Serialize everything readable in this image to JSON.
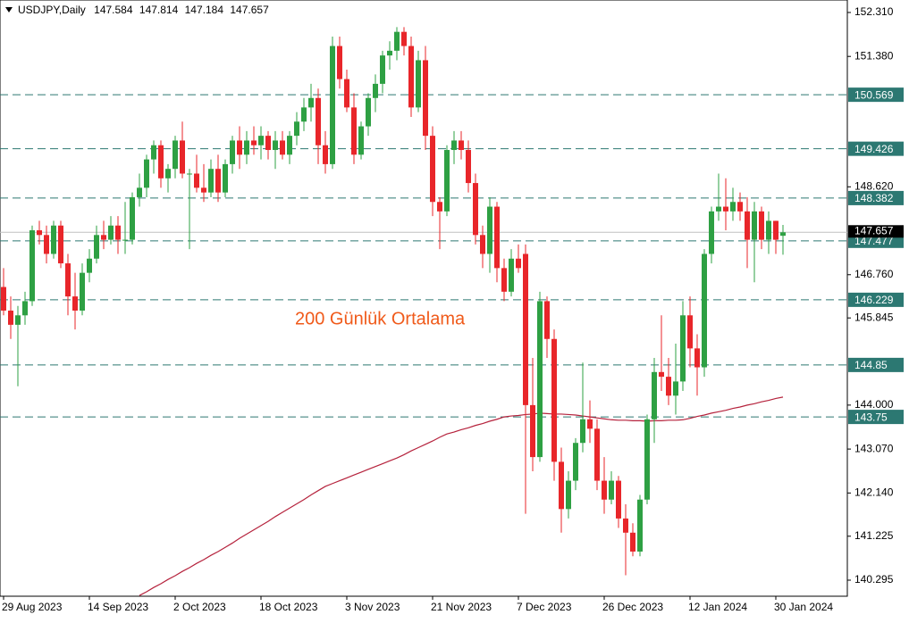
{
  "chart_data": {
    "type": "candlestick",
    "symbol": "USDJPY,Daily",
    "annotation": "200 Günlük Ortalama",
    "up_color": "#2ea043",
    "down_color": "#e8262a",
    "categories": [
      "29 Aug 2023",
      null,
      null,
      null,
      null,
      null,
      null,
      null,
      null,
      null,
      null,
      null,
      "14 Sep 2023",
      null,
      null,
      null,
      null,
      null,
      null,
      null,
      null,
      null,
      null,
      null,
      "2 Oct 2023",
      null,
      null,
      null,
      null,
      null,
      null,
      null,
      null,
      null,
      null,
      null,
      "18 Oct 2023",
      null,
      null,
      null,
      null,
      null,
      null,
      null,
      null,
      null,
      null,
      null,
      "3 Nov 2023",
      null,
      null,
      null,
      null,
      null,
      null,
      null,
      null,
      null,
      null,
      null,
      "21 Nov 2023",
      null,
      null,
      null,
      null,
      null,
      null,
      null,
      null,
      null,
      null,
      null,
      "7 Dec 2023",
      null,
      null,
      null,
      null,
      null,
      null,
      null,
      null,
      null,
      null,
      null,
      "26 Dec 2023",
      null,
      null,
      null,
      null,
      null,
      null,
      null,
      null,
      null,
      null,
      null,
      "12 Jan 2024",
      null,
      null,
      null,
      null,
      null,
      null,
      null,
      null,
      null,
      null,
      null,
      "30 Jan 2024",
      null
    ],
    "open": [
      146.5,
      146.0,
      145.7,
      145.9,
      146.2,
      147.7,
      147.6,
      147.2,
      147.8,
      147.0,
      146.3,
      146.0,
      146.8,
      147.1,
      147.6,
      147.5,
      147.8,
      147.5,
      147.5,
      148.4,
      148.6,
      149.2,
      149.5,
      148.8,
      149.0,
      149.6,
      148.9,
      148.9,
      148.6,
      148.5,
      149.0,
      148.5,
      149.1,
      149.6,
      149.3,
      149.6,
      149.5,
      149.7,
      149.4,
      149.6,
      149.3,
      149.7,
      150.0,
      150.3,
      150.5,
      149.5,
      149.1,
      151.6,
      150.9,
      150.3,
      149.3,
      149.9,
      150.5,
      150.8,
      151.4,
      151.5,
      151.9,
      151.6,
      150.3,
      151.3,
      149.7,
      148.3,
      148.1,
      149.4,
      149.6,
      149.4,
      148.7,
      147.6,
      147.2,
      148.2,
      146.9,
      146.4,
      147.1,
      147.2,
      144.0,
      142.9,
      146.2,
      145.4,
      142.8,
      141.8,
      142.4,
      143.2,
      143.7,
      143.5,
      142.4,
      142.0,
      142.4,
      141.6,
      141.3,
      140.9,
      142.0,
      143.7,
      144.7,
      144.6,
      144.2,
      144.5,
      145.9,
      145.2,
      144.8,
      147.2,
      148.1,
      148.2,
      148.1,
      148.3,
      148.1,
      147.5,
      148.1,
      147.5,
      147.9,
      147.584
    ],
    "high": [
      146.9,
      146.3,
      146.1,
      146.4,
      147.8,
      147.9,
      147.8,
      147.9,
      147.9,
      147.2,
      146.8,
      147.0,
      147.3,
      147.8,
      147.9,
      148.0,
      148.0,
      148.3,
      148.5,
      148.9,
      149.3,
      149.6,
      149.6,
      149.1,
      149.7,
      150.0,
      149.0,
      149.3,
      149.1,
      149.2,
      149.3,
      149.2,
      149.7,
      149.9,
      149.8,
      149.9,
      149.9,
      149.8,
      149.8,
      149.8,
      149.8,
      150.2,
      150.5,
      150.8,
      150.7,
      149.8,
      151.8,
      151.8,
      151.1,
      150.6,
      150.0,
      150.6,
      151.0,
      151.5,
      151.7,
      152.0,
      152.0,
      151.8,
      151.5,
      151.6,
      149.9,
      148.4,
      149.5,
      149.8,
      149.8,
      149.6,
      148.9,
      147.8,
      148.4,
      148.3,
      147.1,
      147.3,
      147.4,
      147.4,
      145.0,
      146.4,
      146.3,
      145.6,
      143.1,
      142.6,
      143.3,
      144.9,
      144.1,
      143.7,
      142.9,
      142.6,
      142.5,
      141.9,
      141.5,
      142.1,
      143.8,
      145.0,
      145.9,
      145.0,
      145.3,
      146.2,
      146.3,
      145.5,
      147.3,
      148.2,
      148.9,
      148.8,
      148.6,
      148.5,
      148.4,
      148.3,
      148.2,
      148.1,
      147.9,
      147.814
    ],
    "low": [
      145.9,
      145.4,
      144.4,
      145.7,
      146.1,
      147.4,
      147.0,
      147.1,
      146.9,
      145.9,
      145.6,
      145.9,
      146.6,
      147.0,
      147.3,
      147.4,
      147.2,
      147.2,
      147.4,
      148.2,
      148.4,
      148.9,
      148.6,
      148.5,
      148.8,
      148.8,
      147.3,
      148.5,
      148.3,
      148.4,
      148.3,
      148.4,
      148.9,
      149.0,
      149.1,
      149.3,
      149.2,
      149.2,
      149.0,
      149.2,
      149.1,
      149.5,
      149.8,
      150.0,
      149.1,
      148.9,
      149.0,
      150.7,
      150.2,
      149.1,
      149.2,
      149.7,
      150.2,
      150.6,
      151.1,
      151.3,
      151.4,
      150.1,
      150.2,
      149.4,
      148.0,
      147.3,
      148.0,
      149.1,
      149.2,
      148.5,
      147.4,
      146.9,
      146.8,
      146.6,
      146.2,
      146.3,
      146.8,
      141.7,
      142.6,
      142.8,
      145.0,
      142.4,
      141.3,
      141.6,
      142.2,
      143.0,
      143.2,
      142.2,
      141.7,
      141.9,
      141.4,
      140.4,
      140.8,
      140.8,
      141.9,
      143.2,
      144.3,
      144.0,
      143.8,
      144.3,
      144.8,
      144.2,
      144.6,
      147.0,
      147.9,
      147.7,
      147.9,
      147.9,
      146.9,
      146.6,
      147.3,
      147.2,
      147.2,
      147.184
    ],
    "close": [
      146.0,
      145.7,
      145.9,
      146.2,
      147.7,
      147.6,
      147.2,
      147.8,
      147.0,
      146.3,
      146.0,
      146.8,
      147.1,
      147.6,
      147.5,
      147.8,
      147.5,
      147.5,
      148.4,
      148.6,
      149.2,
      149.5,
      148.8,
      149.0,
      149.6,
      148.9,
      148.9,
      148.6,
      148.5,
      149.0,
      148.5,
      149.1,
      149.6,
      149.3,
      149.6,
      149.5,
      149.7,
      149.4,
      149.6,
      149.3,
      149.7,
      150.0,
      150.3,
      150.5,
      149.5,
      149.1,
      151.6,
      150.9,
      150.3,
      149.3,
      149.9,
      150.5,
      150.8,
      151.4,
      151.5,
      151.9,
      151.6,
      150.3,
      151.3,
      149.7,
      148.3,
      148.1,
      149.4,
      149.6,
      149.4,
      148.7,
      147.6,
      147.2,
      148.2,
      146.9,
      146.4,
      147.1,
      146.9,
      144.0,
      142.9,
      146.2,
      145.4,
      142.8,
      141.8,
      142.4,
      143.2,
      143.7,
      143.5,
      142.4,
      142.0,
      142.4,
      141.6,
      141.3,
      140.9,
      142.0,
      143.7,
      144.7,
      144.6,
      144.2,
      144.5,
      145.9,
      145.2,
      144.8,
      147.2,
      148.1,
      148.2,
      148.1,
      148.3,
      148.1,
      147.5,
      148.1,
      147.5,
      147.9,
      147.5,
      147.657
    ],
    "moving_average": {
      "name": "200 Günlük Ortalama",
      "color": "#b5223c",
      "values": [
        null,
        null,
        null,
        null,
        null,
        null,
        null,
        null,
        null,
        null,
        null,
        null,
        null,
        null,
        null,
        null,
        null,
        null,
        null,
        139.97,
        140.05,
        140.14,
        140.22,
        140.31,
        140.39,
        140.48,
        140.56,
        140.65,
        140.73,
        140.82,
        140.9,
        140.99,
        141.08,
        141.18,
        141.27,
        141.36,
        141.45,
        141.54,
        141.64,
        141.73,
        141.82,
        141.91,
        142.0,
        142.1,
        142.19,
        142.28,
        142.34,
        142.4,
        142.46,
        142.52,
        142.58,
        142.64,
        142.7,
        142.76,
        142.82,
        142.88,
        142.95,
        143.03,
        143.1,
        143.17,
        143.24,
        143.32,
        143.39,
        143.43,
        143.48,
        143.52,
        143.57,
        143.61,
        143.66,
        143.7,
        143.75,
        143.77,
        143.78,
        143.8,
        143.81,
        143.83,
        143.82,
        143.81,
        143.81,
        143.8,
        143.79,
        143.77,
        143.75,
        143.73,
        143.71,
        143.69,
        143.68,
        143.68,
        143.67,
        143.67,
        143.66,
        143.67,
        143.67,
        143.68,
        143.68,
        143.69,
        143.72,
        143.76,
        143.79,
        143.83,
        143.86,
        143.89,
        143.93,
        143.96,
        144.0,
        144.03,
        144.07,
        144.1,
        144.14,
        144.17
      ]
    },
    "levels": {
      "color": "#2c7872",
      "values": [
        150.569,
        149.426,
        148.382,
        147.477,
        146.229,
        144.85,
        143.75
      ]
    },
    "ylim": [
      139.955,
      152.574
    ],
    "yticks": [
      {
        "value": 152.31,
        "label": "152.310"
      },
      {
        "value": 151.38,
        "label": "151.380"
      },
      {
        "value": 148.62,
        "label": "148.620"
      },
      {
        "value": 146.76,
        "label": "146.760"
      },
      {
        "value": 145.845,
        "label": "145.845"
      },
      {
        "value": 144.0,
        "label": "144.000"
      },
      {
        "value": 143.07,
        "label": "143.070"
      },
      {
        "value": 142.14,
        "label": "142.140"
      },
      {
        "value": 141.225,
        "label": "141.225"
      },
      {
        "value": 140.295,
        "label": "140.295"
      }
    ]
  }
}
